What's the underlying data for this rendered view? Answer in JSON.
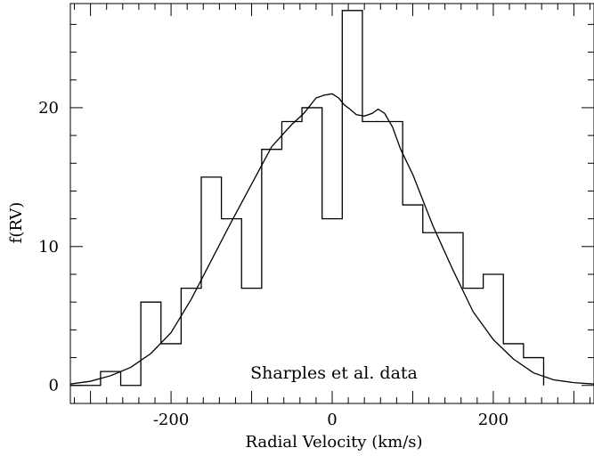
{
  "chart_data": {
    "type": "bar",
    "xlabel": "Radial Velocity (km/s)",
    "ylabel": "f(RV)",
    "xlim": [
      -325,
      325
    ],
    "ylim": [
      -1.3,
      27.5
    ],
    "x_ticks": [
      -200,
      0,
      200
    ],
    "y_ticks": [
      0,
      10,
      20
    ],
    "x_tick_labels": [
      "-200",
      "0",
      "200"
    ],
    "y_tick_labels": [
      "0",
      "10",
      "20"
    ],
    "grid": false,
    "annotation": "Sharples et al. data",
    "histogram": {
      "bin_edges": [
        -287.5,
        -262.5,
        -237.5,
        -212.5,
        -187.5,
        -162.5,
        -137.5,
        -112.5,
        -87.5,
        -62.5,
        -37.5,
        -12.5,
        12.5,
        37.5,
        62.5,
        87.5,
        112.5,
        137.5,
        162.5,
        187.5,
        212.5,
        237.5,
        262.5
      ],
      "counts": [
        1,
        0,
        6,
        3,
        7,
        15,
        12,
        7,
        17,
        19,
        20,
        12,
        27,
        19,
        19,
        13,
        11,
        11,
        7,
        8,
        3,
        2,
        0
      ]
    },
    "curve": {
      "x": [
        -325,
        -300,
        -275,
        -250,
        -225,
        -200,
        -175,
        -150,
        -125,
        -100,
        -75,
        -50,
        -35,
        -20,
        -10,
        0,
        8,
        15,
        22,
        30,
        40,
        50,
        57,
        65,
        75,
        85,
        100,
        125,
        150,
        175,
        200,
        225,
        250,
        275,
        300,
        325
      ],
      "y": [
        0.1,
        0.3,
        0.7,
        1.3,
        2.3,
        3.8,
        6.2,
        9.0,
        11.8,
        14.5,
        17.2,
        18.8,
        19.6,
        20.7,
        20.9,
        21.0,
        20.7,
        20.2,
        19.9,
        19.5,
        19.4,
        19.6,
        19.9,
        19.6,
        18.6,
        17.0,
        15.2,
        11.5,
        8.3,
        5.3,
        3.3,
        1.9,
        0.9,
        0.4,
        0.2,
        0.1
      ]
    }
  }
}
